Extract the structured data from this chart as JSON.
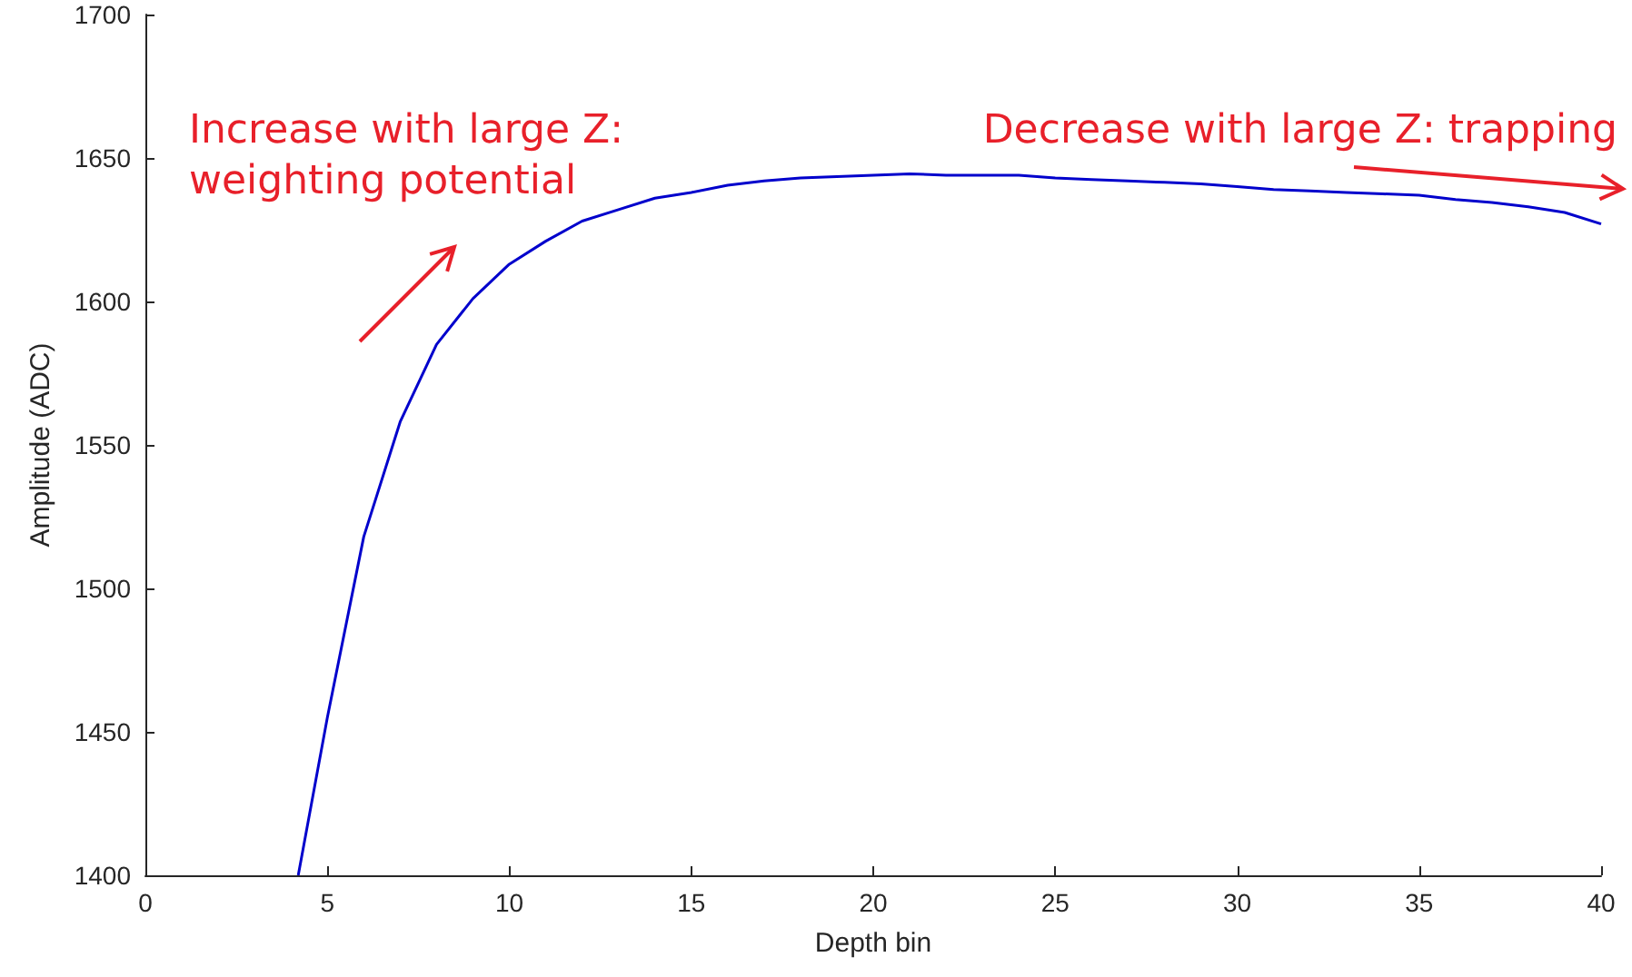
{
  "chart_data": {
    "type": "line",
    "xlabel": "Depth bin",
    "ylabel": "Amplitude (ADC)",
    "x": [
      4.2,
      5,
      6,
      7,
      8,
      9,
      10,
      11,
      12,
      13,
      14,
      15,
      16,
      17,
      18,
      19,
      20,
      21,
      22,
      23,
      24,
      25,
      26,
      27,
      28,
      29,
      30,
      31,
      32,
      33,
      34,
      35,
      36,
      37,
      38,
      39,
      40
    ],
    "series": [
      {
        "color": "#0000cc",
        "values": [
          1400,
          1455,
          1518,
          1558,
          1585,
          1601,
          1613,
          1621,
          1628,
          1632,
          1636,
          1638,
          1640.5,
          1642,
          1643,
          1643.5,
          1644,
          1644.5,
          1644,
          1644,
          1644,
          1643,
          1642.5,
          1642,
          1641.5,
          1641,
          1640,
          1639,
          1638.5,
          1638,
          1637.5,
          1637,
          1635.5,
          1634.5,
          1633,
          1631,
          1627
        ]
      }
    ],
    "xlim": [
      0,
      40
    ],
    "xticks": [
      0,
      5,
      10,
      15,
      20,
      25,
      30,
      35,
      40
    ],
    "ylim": [
      1400,
      1700
    ],
    "yticks": [
      1400,
      1450,
      1500,
      1550,
      1600,
      1650,
      1700
    ],
    "annotations": [
      "Increase with large Z:\nweighting potential",
      "Decrease with large Z: trapping"
    ],
    "marker": "none",
    "line_style": "solid"
  }
}
